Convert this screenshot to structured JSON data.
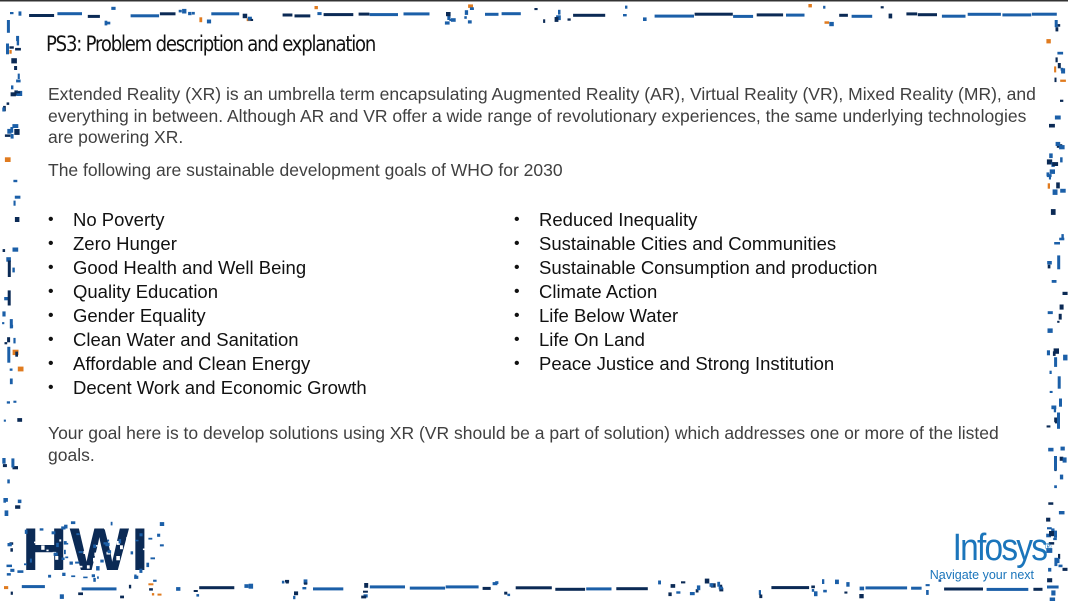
{
  "slide": {
    "title": "PS3: Problem description and explanation",
    "intro": "Extended Reality (XR) is an umbrella term encapsulating Augmented Reality (AR), Virtual Reality (VR), Mixed Reality (MR), and everything in between. Although AR and VR offer a wide range of revolutionary experiences, the same underlying technologies are powering XR.",
    "goals_intro": "The following are sustainable development goals of WHO for 2030",
    "goals_left": [
      "No Poverty",
      "Zero Hunger",
      "Good Health and Well Being",
      "Quality Education",
      "Gender Equality",
      "Clean Water and Sanitation",
      "Affordable and Clean Energy",
      "Decent Work and Economic Growth"
    ],
    "goals_right": [
      "Reduced Inequality",
      "Sustainable Cities and Communities",
      "Sustainable Consumption and production",
      "Climate Action",
      "Life Below Water",
      "Life On Land",
      "Peace Justice and Strong Institution"
    ],
    "bullet": "•",
    "closing": "Your goal here is to develop solutions using XR (VR should be a part of solution) which addresses one or more of the listed goals."
  },
  "logos": {
    "hwi": {
      "letters": "HWI",
      "icon": "hwi-pixel-logo"
    },
    "infosys": {
      "wordmark": "Infosys",
      "registered": "®",
      "tagline": "Navigate your next",
      "color": "#1b75bb"
    }
  },
  "theme": {
    "border_blue": "#1b5fa8",
    "border_dark": "#0b2a55",
    "border_accent": "#e07b1f"
  }
}
